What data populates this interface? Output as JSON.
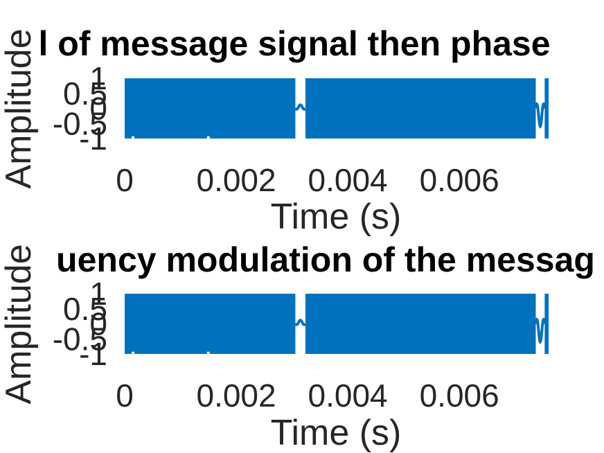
{
  "colors": {
    "line": "#0072BD",
    "axis": "#262626",
    "title": "#000000",
    "background": "#ffffff"
  },
  "chart_data": [
    {
      "type": "line",
      "title": "l of message signal then phase",
      "xlabel": "Time (s)",
      "ylabel": "Amplitude",
      "xlim": [
        0,
        0.0076
      ],
      "ylim": [
        -1,
        1
      ],
      "xticks": [
        0,
        0.002,
        0.004,
        0.006
      ],
      "xtick_labels": [
        "0",
        "0.002",
        "0.004",
        "0.006"
      ],
      "yticks": [
        -1,
        -0.5,
        0,
        0.5,
        1
      ],
      "ytick_labels": [
        "-1",
        "-0.5",
        "0",
        "0.5",
        "1"
      ],
      "grid": false,
      "series": [
        {
          "signal": "dense oscillation filling [-1, 1] with narrow gaps",
          "x_range": [
            0,
            0.0076
          ],
          "features": [
            {
              "x": 0.00015,
              "y": -0.95
            },
            {
              "x": 0.0015,
              "y": -0.95
            },
            {
              "x": 0.00315,
              "y": -0.05,
              "gap_half_width": 9e-05,
              "spike_to": 0.12
            },
            {
              "x": 0.00745,
              "y": 0.05,
              "gap_half_width": 8e-05,
              "spike_to": -0.6
            }
          ]
        }
      ]
    },
    {
      "type": "line",
      "title": "uency modulation of the messag",
      "xlabel": "Time (s)",
      "ylabel": "Amplitude",
      "xlim": [
        0,
        0.0076
      ],
      "ylim": [
        -1,
        1
      ],
      "xticks": [
        0,
        0.002,
        0.004,
        0.006
      ],
      "xtick_labels": [
        "0",
        "0.002",
        "0.004",
        "0.006"
      ],
      "yticks": [
        -1,
        -0.5,
        0,
        0.5,
        1
      ],
      "ytick_labels": [
        "-1",
        "-0.5",
        "0",
        "0.5",
        "1"
      ],
      "grid": false,
      "series": [
        {
          "signal": "dense oscillation filling [-1, 1] with narrow gaps",
          "x_range": [
            0,
            0.0076
          ],
          "features": [
            {
              "x": 0.00015,
              "y": -0.95
            },
            {
              "x": 0.0015,
              "y": -0.95
            },
            {
              "x": 0.00315,
              "y": -0.05,
              "gap_half_width": 9e-05,
              "spike_to": 0.12
            },
            {
              "x": 0.00745,
              "y": 0.05,
              "gap_half_width": 8e-05,
              "spike_to": -0.6
            }
          ]
        }
      ]
    }
  ]
}
